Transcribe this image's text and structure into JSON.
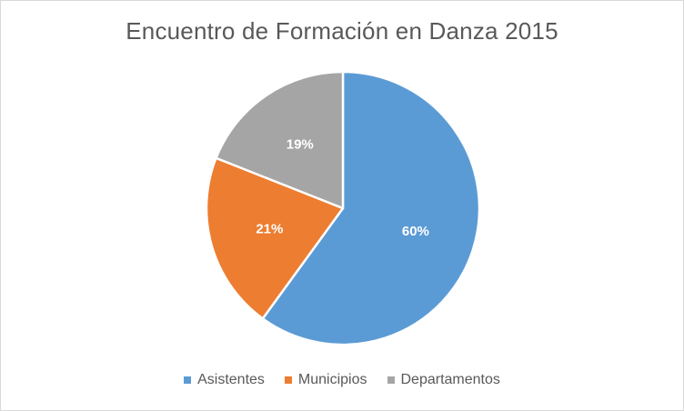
{
  "chart_data": {
    "type": "pie",
    "title": "Encuentro de Formación en Danza 2015",
    "categories": [
      "Asistentes",
      "Municipios",
      "Departamentos"
    ],
    "values": [
      60,
      21,
      19
    ],
    "data_labels": [
      "60%",
      "21%",
      "19%"
    ],
    "colors": [
      "#5B9BD5",
      "#ED7D31",
      "#A5A5A5"
    ],
    "legend": {
      "position": "bottom",
      "entries": [
        "Asistentes",
        "Municipios",
        "Departamentos"
      ]
    }
  }
}
